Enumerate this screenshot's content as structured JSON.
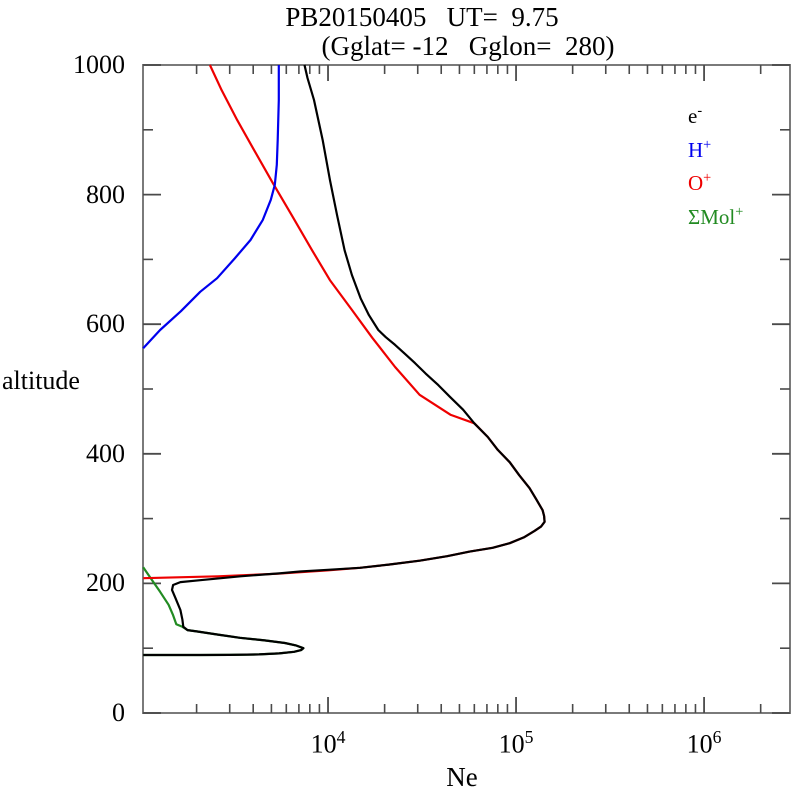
{
  "title": {
    "line1": "PB20150405   UT=  9.75",
    "line2": "(Gglat= -12   Gglon=  280)"
  },
  "axes": {
    "y": {
      "label": "altitude",
      "min": 0,
      "max": 1000,
      "major_ticks": [
        0,
        200,
        400,
        600,
        800,
        1000
      ],
      "minor_ticks": [
        100,
        300,
        500,
        700,
        900
      ]
    },
    "x": {
      "label": "Ne",
      "scale": "log",
      "log_min": 3.016,
      "log_max": 6.457,
      "major_ticks": [
        {
          "value": 10000,
          "base": "10",
          "exp": "4"
        },
        {
          "value": 100000,
          "base": "10",
          "exp": "5"
        },
        {
          "value": 1000000,
          "base": "10",
          "exp": "6"
        }
      ]
    }
  },
  "legend": {
    "position": "top-right",
    "items": [
      {
        "label": "e",
        "sup": "-",
        "color": "#000000"
      },
      {
        "label": "H",
        "sup": "+",
        "color": "#0000ee"
      },
      {
        "label": "O",
        "sup": "+",
        "color": "#ee0000"
      },
      {
        "label": "ΣMol",
        "sup": "+",
        "color": "#228b22"
      }
    ]
  },
  "colors": {
    "frame": "#7a7a7a",
    "ticks": "#4a4a4a",
    "electron": "#000000",
    "h_plus": "#0000ee",
    "o_plus": "#ee0000",
    "mol_plus": "#228b22"
  },
  "chart_data": {
    "type": "line",
    "title": "PB20150405  UT= 9.75 (Gglat= -12  Gglon= 280)",
    "xlabel": "Ne",
    "ylabel": "altitude",
    "x_scale": "log",
    "xlim_log10": [
      3.016,
      6.457
    ],
    "ylim": [
      0,
      1000
    ],
    "grid": false,
    "legend_position": "top-right",
    "series": [
      {
        "name": "e-",
        "color": "#000000",
        "points_ne_alt": [
          [
            1040,
            89.5
          ],
          [
            2100,
            89.5
          ],
          [
            3000,
            89.6
          ],
          [
            4300,
            90.5
          ],
          [
            5500,
            92
          ],
          [
            6600,
            94.5
          ],
          [
            7200,
            97
          ],
          [
            7400,
            100
          ],
          [
            6800,
            104
          ],
          [
            5900,
            108
          ],
          [
            4600,
            112
          ],
          [
            3400,
            116
          ],
          [
            2600,
            121
          ],
          [
            2000,
            126
          ],
          [
            1790,
            128
          ],
          [
            1700,
            133
          ],
          [
            1680,
            144
          ],
          [
            1640,
            159
          ],
          [
            1540,
            178
          ],
          [
            1480,
            190
          ],
          [
            1500,
            197.5
          ],
          [
            1640,
            202
          ],
          [
            2090,
            205
          ],
          [
            3420,
            211
          ],
          [
            5500,
            215.5
          ],
          [
            7100,
            218.4
          ],
          [
            10000,
            221
          ],
          [
            14800,
            224
          ],
          [
            21000,
            229
          ],
          [
            30700,
            235
          ],
          [
            43000,
            242
          ],
          [
            56700,
            249
          ],
          [
            75000,
            255
          ],
          [
            92500,
            262
          ],
          [
            110000,
            271
          ],
          [
            125300,
            281
          ],
          [
            136000,
            288
          ],
          [
            141900,
            295
          ],
          [
            141000,
            304
          ],
          [
            138500,
            313
          ],
          [
            128000,
            330
          ],
          [
            117900,
            347
          ],
          [
            104000,
            367
          ],
          [
            92500,
            387
          ],
          [
            80000,
            406
          ],
          [
            70800,
            426
          ],
          [
            60000,
            447
          ],
          [
            52300,
            468
          ],
          [
            44500,
            488
          ],
          [
            38600,
            506
          ],
          [
            33000,
            524
          ],
          [
            29000,
            540
          ],
          [
            25500,
            555
          ],
          [
            22750,
            568
          ],
          [
            20300,
            580
          ],
          [
            18500,
            591
          ],
          [
            16500,
            614
          ],
          [
            14900,
            640
          ],
          [
            13400,
            676
          ],
          [
            12250,
            714
          ],
          [
            11180,
            768
          ],
          [
            10250,
            822
          ],
          [
            9365,
            884
          ],
          [
            8420,
            946
          ],
          [
            7780,
            980
          ],
          [
            7500,
            1000
          ]
        ]
      },
      {
        "name": "H+",
        "color": "#0000ee",
        "points_ne_alt": [
          [
            1040,
            563
          ],
          [
            1280,
            591
          ],
          [
            1650,
            620
          ],
          [
            2090,
            650
          ],
          [
            2570,
            671
          ],
          [
            3200,
            702
          ],
          [
            3870,
            730
          ],
          [
            4500,
            761
          ],
          [
            4960,
            792
          ],
          [
            5210,
            815
          ],
          [
            5340,
            846
          ],
          [
            5400,
            884
          ],
          [
            5470,
            946
          ],
          [
            5470,
            1000
          ]
        ]
      },
      {
        "name": "O+",
        "color": "#ee0000",
        "points_ne_alt": [
          [
            2355,
            1000
          ],
          [
            2720,
            961
          ],
          [
            3290,
            915
          ],
          [
            4040,
            869
          ],
          [
            5060,
            819
          ],
          [
            6420,
            768
          ],
          [
            8230,
            714
          ],
          [
            10230,
            668
          ],
          [
            13400,
            622
          ],
          [
            17200,
            579
          ],
          [
            22750,
            534
          ],
          [
            30700,
            491
          ],
          [
            45000,
            460
          ],
          [
            60000,
            447
          ],
          [
            70800,
            426
          ],
          [
            80000,
            406
          ],
          [
            92500,
            387
          ],
          [
            104000,
            367
          ],
          [
            117900,
            347
          ],
          [
            128000,
            330
          ],
          [
            138500,
            313
          ],
          [
            141000,
            304
          ],
          [
            141900,
            295
          ],
          [
            136000,
            288
          ],
          [
            125300,
            281
          ],
          [
            110000,
            271
          ],
          [
            92500,
            262
          ],
          [
            75000,
            255
          ],
          [
            56700,
            249
          ],
          [
            43000,
            242
          ],
          [
            30700,
            235
          ],
          [
            21000,
            229
          ],
          [
            14800,
            224
          ],
          [
            9900,
            220
          ],
          [
            5430,
            215
          ],
          [
            2600,
            211
          ],
          [
            1040,
            208
          ]
        ]
      },
      {
        "name": "SMol+",
        "color": "#228b22",
        "points_ne_alt": [
          [
            1040,
            225
          ],
          [
            1160,
            205
          ],
          [
            1280,
            187
          ],
          [
            1420,
            167
          ],
          [
            1500,
            151
          ],
          [
            1560,
            137
          ],
          [
            1680,
            133
          ],
          [
            1790,
            128
          ],
          [
            2000,
            126
          ],
          [
            2600,
            121
          ],
          [
            3400,
            116
          ],
          [
            4600,
            112
          ],
          [
            5900,
            108
          ],
          [
            6800,
            104
          ],
          [
            7400,
            100
          ],
          [
            7200,
            97
          ],
          [
            6600,
            94.5
          ],
          [
            5500,
            92
          ],
          [
            4300,
            90.5
          ],
          [
            3000,
            89.6
          ],
          [
            2100,
            89.5
          ],
          [
            1040,
            89.5
          ]
        ]
      }
    ]
  }
}
